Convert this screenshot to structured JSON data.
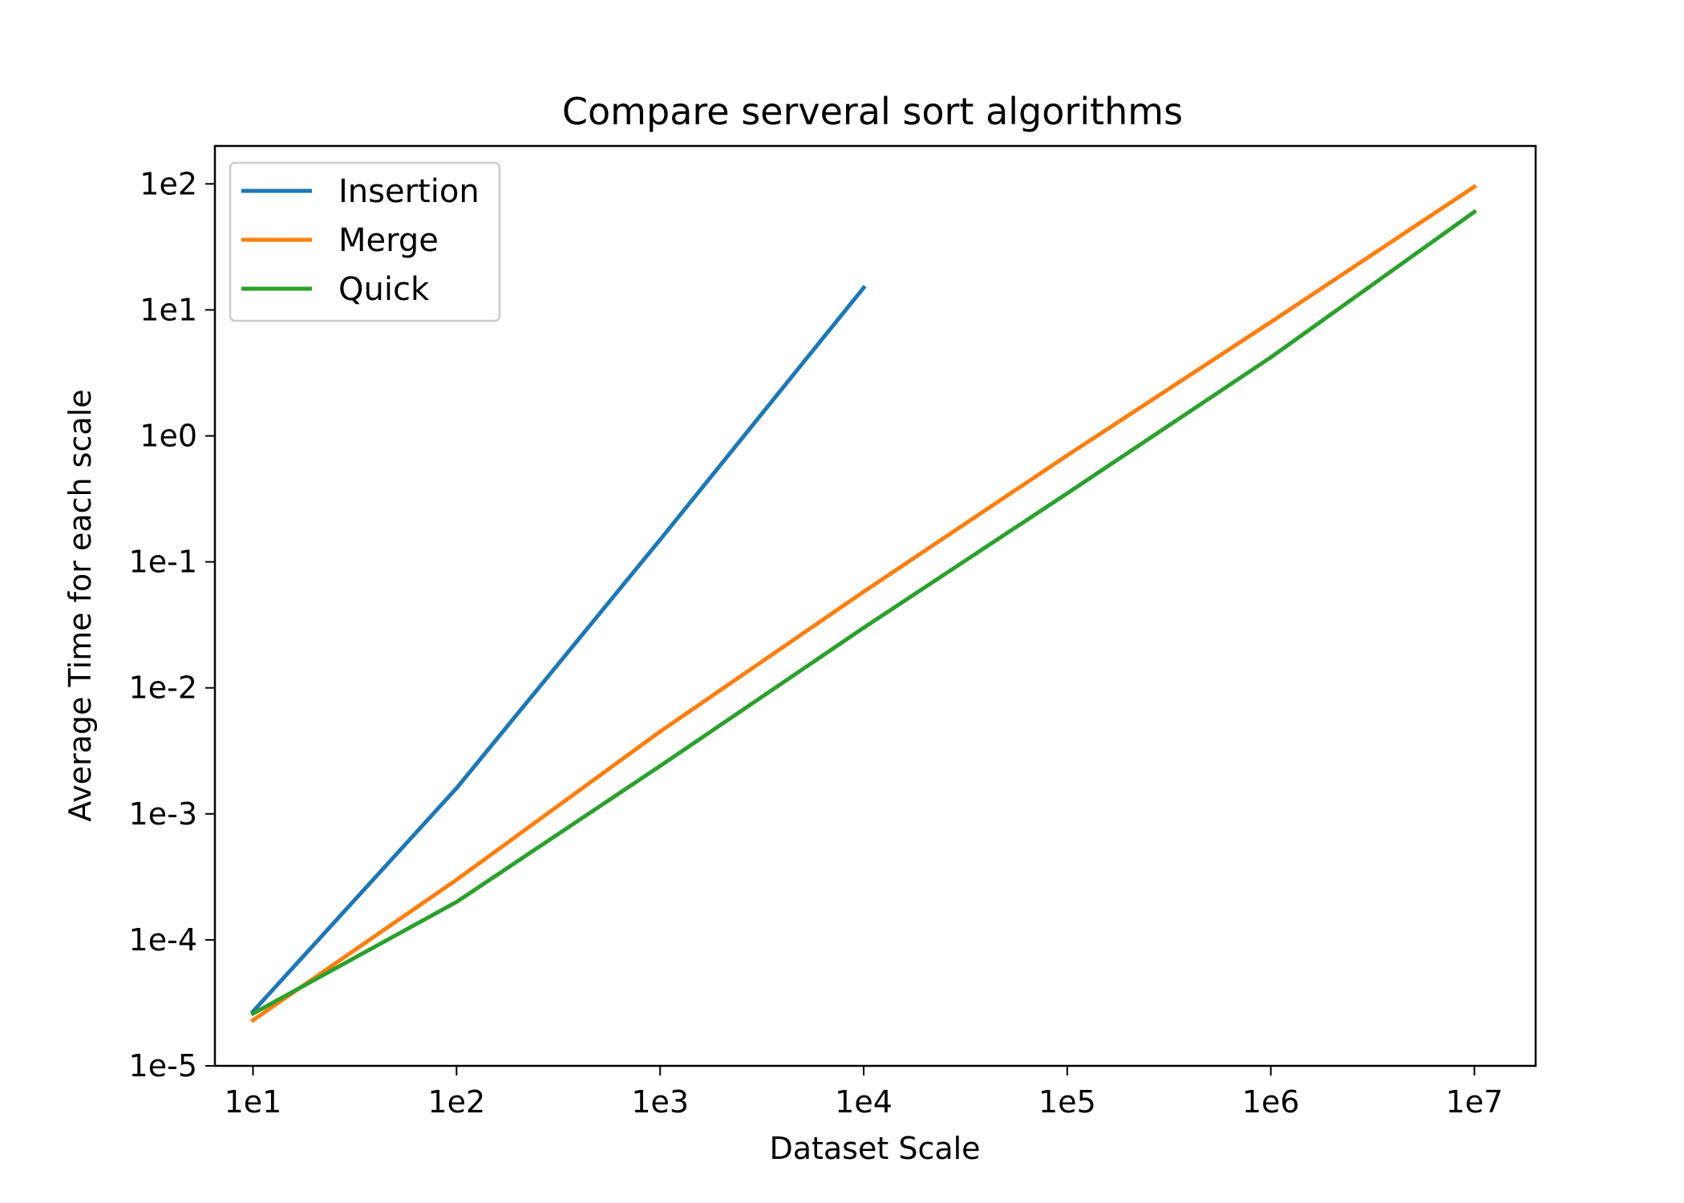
{
  "chart_data": {
    "type": "line",
    "title": "Compare serveral sort algorithms",
    "xlabel": "Dataset Scale",
    "ylabel": "Average Time for each scale",
    "xscale": "log",
    "yscale": "log",
    "xlim": [
      6.5,
      20000000
    ],
    "ylim": [
      1e-05,
      200
    ],
    "xticks": [
      {
        "value": 10,
        "label": "1e1"
      },
      {
        "value": 100,
        "label": "1e2"
      },
      {
        "value": 1000,
        "label": "1e3"
      },
      {
        "value": 10000,
        "label": "1e4"
      },
      {
        "value": 100000,
        "label": "1e5"
      },
      {
        "value": 1000000,
        "label": "1e6"
      },
      {
        "value": 10000000,
        "label": "1e7"
      }
    ],
    "yticks": [
      {
        "value": 1e-05,
        "label": "1e-5"
      },
      {
        "value": 0.0001,
        "label": "1e-4"
      },
      {
        "value": 0.001,
        "label": "1e-3"
      },
      {
        "value": 0.01,
        "label": "1e-2"
      },
      {
        "value": 0.1,
        "label": "1e-1"
      },
      {
        "value": 1,
        "label": "1e0"
      },
      {
        "value": 10,
        "label": "1e1"
      },
      {
        "value": 100,
        "label": "1e2"
      }
    ],
    "grid": false,
    "legend_position": "top-left",
    "series": [
      {
        "name": "Insertion",
        "color": "#1f77b4",
        "x": [
          10,
          100,
          1000,
          10000
        ],
        "y": [
          2.7e-05,
          0.0016,
          0.15,
          15
        ]
      },
      {
        "name": "Merge",
        "color": "#ff7f0e",
        "x": [
          10,
          100,
          1000,
          10000,
          100000,
          1000000,
          10000000
        ],
        "y": [
          2.3e-05,
          0.0003,
          0.0045,
          0.058,
          0.7,
          8,
          95
        ]
      },
      {
        "name": "Quick",
        "color": "#2ca02c",
        "x": [
          10,
          100,
          1000,
          10000,
          100000,
          1000000,
          10000000
        ],
        "y": [
          2.6e-05,
          0.0002,
          0.0024,
          0.03,
          0.35,
          4.2,
          60
        ]
      }
    ]
  }
}
